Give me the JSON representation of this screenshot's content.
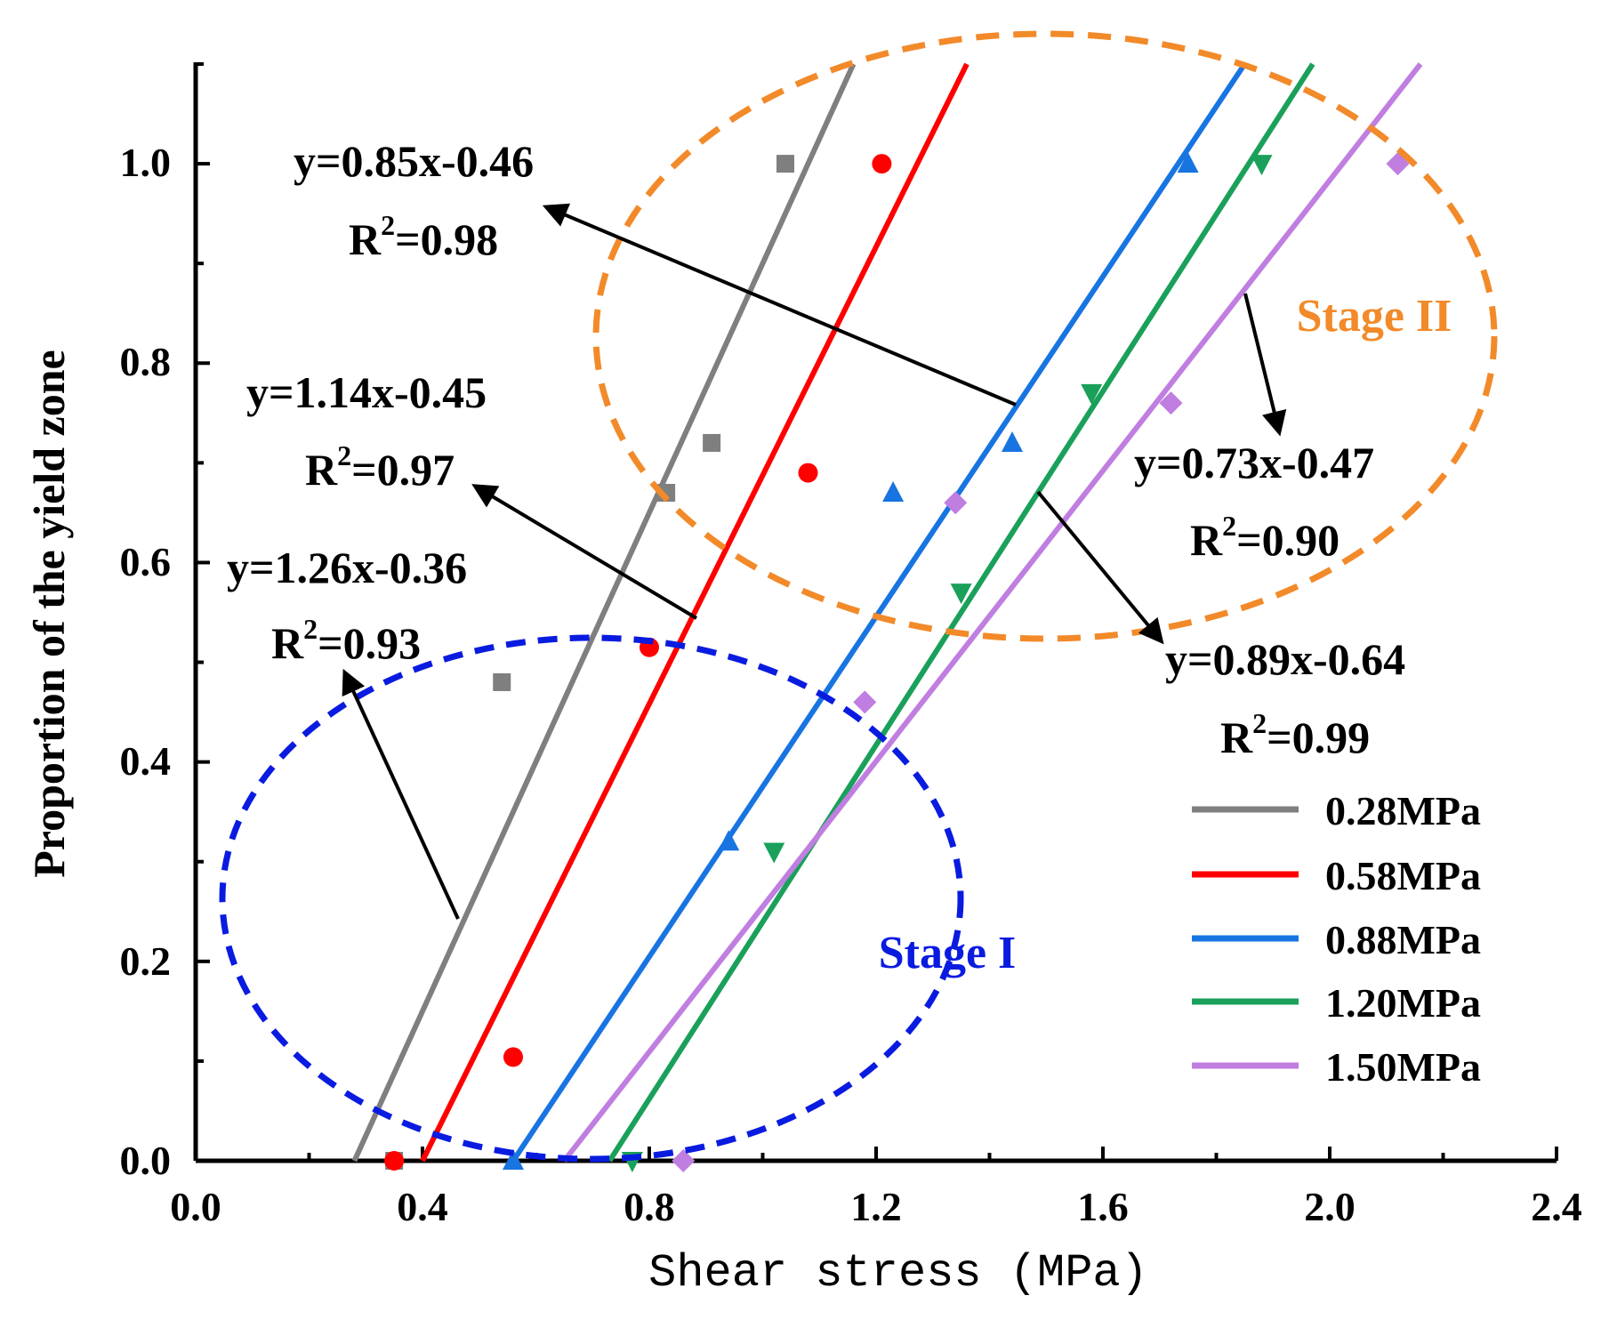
{
  "chart_data": {
    "type": "scatter",
    "xlabel": "Shear stress (MPa)",
    "ylabel": "Proportion of the yield zone",
    "xlim": [
      0.0,
      2.4
    ],
    "ylim": [
      0.0,
      1.1
    ],
    "xticks": [
      0.0,
      0.4,
      0.8,
      1.2,
      1.6,
      2.0,
      2.4
    ],
    "xtick_labels": [
      "0.0",
      "0.4",
      "0.8",
      "1.2",
      "1.6",
      "2.0",
      "2.4"
    ],
    "yticks": [
      0.0,
      0.2,
      0.4,
      0.6,
      0.8,
      1.0
    ],
    "ytick_labels": [
      "0.0",
      "0.2",
      "0.4",
      "0.6",
      "0.8",
      "1.0"
    ],
    "series": [
      {
        "name": "0.28MPa",
        "color": "#7f7f7f",
        "marker": "square",
        "fit": {
          "x": [
            0.28,
            1.16
          ],
          "y": [
            0.0,
            1.1
          ]
        },
        "points": [
          {
            "x": 0.35,
            "y": 0.0
          },
          {
            "x": 0.54,
            "y": 0.48
          },
          {
            "x": 0.83,
            "y": 0.67
          },
          {
            "x": 0.91,
            "y": 0.72
          },
          {
            "x": 1.04,
            "y": 1.0
          }
        ]
      },
      {
        "name": "0.58MPa",
        "color": "#ff0000",
        "marker": "circle",
        "fit": {
          "x": [
            0.4,
            1.36
          ],
          "y": [
            0.0,
            1.1
          ]
        },
        "points": [
          {
            "x": 0.35,
            "y": 0.0
          },
          {
            "x": 0.56,
            "y": 0.104
          },
          {
            "x": 0.8,
            "y": 0.515
          },
          {
            "x": 1.08,
            "y": 0.69
          },
          {
            "x": 1.21,
            "y": 1.0
          }
        ]
      },
      {
        "name": "0.88MPa",
        "color": "#1874e0",
        "marker": "triangle-up",
        "fit": {
          "x": [
            0.56,
            1.85
          ],
          "y": [
            0.0,
            1.1
          ]
        },
        "points": [
          {
            "x": 0.56,
            "y": 0.0
          },
          {
            "x": 0.94,
            "y": 0.32
          },
          {
            "x": 1.23,
            "y": 0.67
          },
          {
            "x": 1.44,
            "y": 0.72
          },
          {
            "x": 1.75,
            "y": 1.0
          }
        ]
      },
      {
        "name": "1.20MPa",
        "color": "#1aa05a",
        "marker": "triangle-down",
        "fit": {
          "x": [
            0.73,
            1.97
          ],
          "y": [
            0.0,
            1.1
          ]
        },
        "points": [
          {
            "x": 0.77,
            "y": 0.0
          },
          {
            "x": 1.02,
            "y": 0.31
          },
          {
            "x": 1.35,
            "y": 0.57
          },
          {
            "x": 1.58,
            "y": 0.77
          },
          {
            "x": 1.88,
            "y": 1.0
          }
        ]
      },
      {
        "name": "1.50MPa",
        "color": "#c07ee0",
        "marker": "diamond",
        "fit": {
          "x": [
            0.65,
            2.16
          ],
          "y": [
            0.0,
            1.1
          ]
        },
        "points": [
          {
            "x": 0.86,
            "y": 0.0
          },
          {
            "x": 1.18,
            "y": 0.46
          },
          {
            "x": 1.34,
            "y": 0.66
          },
          {
            "x": 1.72,
            "y": 0.76
          },
          {
            "x": 2.12,
            "y": 1.0
          }
        ]
      }
    ],
    "annotations": {
      "eq1": {
        "line1": "y=0.85x-0.46",
        "r2": "0.98"
      },
      "eq2": {
        "line1": "y=1.14x-0.45",
        "r2": "0.97"
      },
      "eq3": {
        "line1": "y=1.26x-0.36",
        "r2": "0.93"
      },
      "eq4": {
        "line1": "y=0.73x-0.47",
        "r2": "0.90"
      },
      "eq5": {
        "line1": "y=0.89x-0.64",
        "r2": "0.99"
      },
      "r2_prefix": "R",
      "r2_sup": "2",
      "r2_eq": "=",
      "stage1": "Stage I",
      "stage2": "Stage II"
    },
    "colors": {
      "stage1": "#0a1be0",
      "stage2": "#f28a2a",
      "arrow": "#000000"
    },
    "legend_placement": "bottom-right"
  }
}
